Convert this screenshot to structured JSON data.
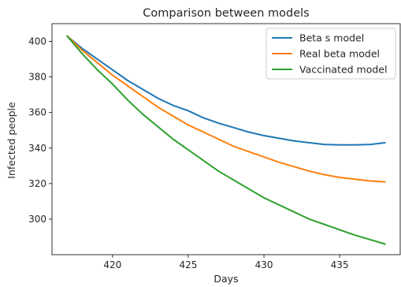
{
  "chart_data": {
    "type": "line",
    "title": "Comparison between models",
    "xlabel": "Days",
    "ylabel": "Infected people",
    "xlim": [
      416,
      439
    ],
    "ylim": [
      280,
      410
    ],
    "xticks": [
      420,
      425,
      430,
      435
    ],
    "yticks": [
      300,
      320,
      340,
      360,
      380,
      400
    ],
    "grid": false,
    "legend_position": "top-right",
    "series": [
      {
        "name": "Beta s model",
        "color": "#1f77b4",
        "x": [
          417,
          418,
          419,
          420,
          421,
          422,
          423,
          424,
          425,
          426,
          427,
          428,
          429,
          430,
          431,
          432,
          433,
          434,
          435,
          436,
          437,
          438
        ],
        "y": [
          403,
          396,
          390,
          384,
          378,
          373,
          368,
          364,
          361,
          357,
          354,
          351.5,
          349,
          347,
          345.5,
          344,
          343,
          342,
          341.8,
          341.8,
          342,
          343
        ]
      },
      {
        "name": "Real beta model",
        "color": "#ff7f0e",
        "x": [
          417,
          418,
          419,
          420,
          421,
          422,
          423,
          424,
          425,
          426,
          427,
          428,
          429,
          430,
          431,
          432,
          433,
          434,
          435,
          436,
          437,
          438
        ],
        "y": [
          403,
          395,
          388,
          381,
          375,
          369,
          363,
          358,
          353,
          349,
          345,
          341,
          338,
          335,
          332,
          329.5,
          327,
          325,
          323.5,
          322.5,
          321.5,
          321
        ]
      },
      {
        "name": "Vaccinated model",
        "color": "#2ca02c",
        "x": [
          417,
          418,
          419,
          420,
          421,
          422,
          423,
          424,
          425,
          426,
          427,
          428,
          429,
          430,
          431,
          432,
          433,
          434,
          435,
          436,
          437,
          438
        ],
        "y": [
          403,
          393,
          384,
          376,
          367,
          359,
          352,
          345,
          339,
          333,
          327,
          322,
          317,
          312,
          308,
          304,
          300,
          297,
          294,
          291,
          288.5,
          286
        ]
      }
    ]
  }
}
